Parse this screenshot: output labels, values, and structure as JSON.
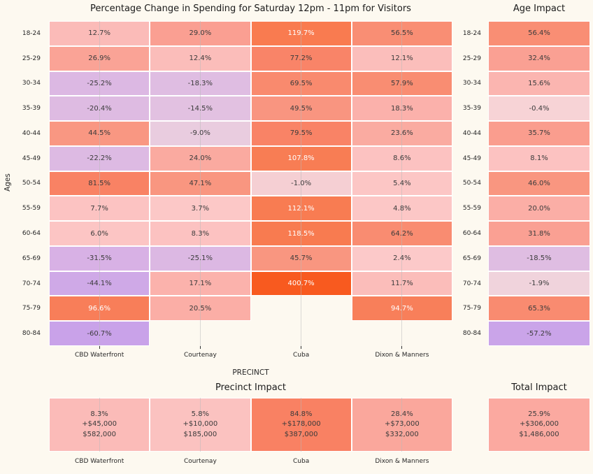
{
  "titles": {
    "main": "Percentage Change in Spending for Saturday 12pm - 11pm for Visitors",
    "age_impact": "Age Impact",
    "precinct_impact": "Precinct Impact",
    "total_impact": "Total Impact"
  },
  "colors": {
    "background": "#FDF9F0",
    "cell_border": "#FFFFFF",
    "text_dark": "#3B3B3B",
    "text_light": "#FFFFFF",
    "gridline": "#B9B9B9",
    "max_positive": "#F85A1F",
    "max_negative": "#C9A2E9"
  },
  "chart_data": {
    "type": "heatmap",
    "title": "Percentage Change in Spending for Saturday 12pm - 11pm for Visitors",
    "xlabel": "PRECINCT",
    "ylabel": "Ages",
    "x_categories": [
      "CBD Waterfront",
      "Courtenay",
      "Cuba",
      "Dixon & Manners"
    ],
    "y_categories": [
      "18-24",
      "25-29",
      "30-34",
      "35-39",
      "40-44",
      "45-49",
      "50-54",
      "55-59",
      "60-64",
      "65-69",
      "70-74",
      "75-79",
      "80-84"
    ],
    "value_unit": "percent",
    "main": {
      "rows": [
        [
          {
            "v": 12.7,
            "c": "#FBBBB8"
          },
          {
            "v": 29.0,
            "c": "#FA9F92"
          },
          {
            "v": 119.7,
            "c": "#F97B50"
          },
          {
            "v": 56.5,
            "c": "#F98E74"
          }
        ],
        [
          {
            "v": 26.9,
            "c": "#FAA396"
          },
          {
            "v": 12.4,
            "c": "#FBBDBA"
          },
          {
            "v": 77.2,
            "c": "#F98468"
          },
          {
            "v": 12.1,
            "c": "#FBBEBB"
          }
        ],
        [
          {
            "v": -25.2,
            "c": "#DCB8E3"
          },
          {
            "v": -18.3,
            "c": "#DFBDE2"
          },
          {
            "v": 69.5,
            "c": "#F98A6E"
          },
          {
            "v": 57.9,
            "c": "#F98D72"
          }
        ],
        [
          {
            "v": -20.4,
            "c": "#DEBBE2"
          },
          {
            "v": -14.5,
            "c": "#E2C1E1"
          },
          {
            "v": 49.5,
            "c": "#F99580"
          },
          {
            "v": 18.3,
            "c": "#FBB1AB"
          }
        ],
        [
          {
            "v": 44.5,
            "c": "#F99782"
          },
          {
            "v": -9.0,
            "c": "#E9CCDF"
          },
          {
            "v": 79.5,
            "c": "#F98366"
          },
          {
            "v": 23.6,
            "c": "#FAABA1"
          }
        ],
        [
          {
            "v": -22.2,
            "c": "#DDBAE3"
          },
          {
            "v": 24.0,
            "c": "#FAAAA0"
          },
          {
            "v": 107.8,
            "c": "#F87D54"
          },
          {
            "v": 8.6,
            "c": "#FCC2C1"
          }
        ],
        [
          {
            "v": 81.5,
            "c": "#F98264"
          },
          {
            "v": 47.1,
            "c": "#F99680"
          },
          {
            "v": -1.0,
            "c": "#F5CFD3"
          },
          {
            "v": 5.4,
            "c": "#FCC6C5"
          }
        ],
        [
          {
            "v": 7.7,
            "c": "#FCC3C2"
          },
          {
            "v": 3.7,
            "c": "#FCC8C7"
          },
          {
            "v": 112.1,
            "c": "#F87C52"
          },
          {
            "v": 4.8,
            "c": "#FCC7C6"
          }
        ],
        [
          {
            "v": 6.0,
            "c": "#FCC5C4"
          },
          {
            "v": 8.3,
            "c": "#FCC2C1"
          },
          {
            "v": 118.5,
            "c": "#F87B50"
          },
          {
            "v": 64.2,
            "c": "#F98C71"
          }
        ],
        [
          {
            "v": -31.5,
            "c": "#D8B1E5"
          },
          {
            "v": -25.1,
            "c": "#DCB8E3"
          },
          {
            "v": 45.7,
            "c": "#F99680"
          },
          {
            "v": 2.4,
            "c": "#FCC9C9"
          }
        ],
        [
          {
            "v": -44.1,
            "c": "#CFA9E7"
          },
          {
            "v": 17.1,
            "c": "#FBB2AC"
          },
          {
            "v": 400.7,
            "c": "#F85A1F"
          },
          {
            "v": 11.7,
            "c": "#FBBDBA"
          }
        ],
        [
          {
            "v": 96.6,
            "c": "#F87E59"
          },
          {
            "v": 20.5,
            "c": "#FBAEA6"
          },
          null,
          {
            "v": 94.7,
            "c": "#F87F5A"
          }
        ],
        [
          {
            "v": -60.7,
            "c": "#C9A2E9"
          },
          null,
          null,
          null
        ]
      ]
    },
    "age_impact": {
      "title": "Age Impact",
      "cells": [
        {
          "v": 56.4,
          "c": "#F98E74"
        },
        {
          "v": 32.4,
          "c": "#FAA093"
        },
        {
          "v": 15.6,
          "c": "#FBB5B0"
        },
        {
          "v": -0.4,
          "c": "#F7D3D6"
        },
        {
          "v": 35.7,
          "c": "#FA9D8E"
        },
        {
          "v": 8.1,
          "c": "#FCC2C1"
        },
        {
          "v": 46.0,
          "c": "#F99680"
        },
        {
          "v": 20.0,
          "c": "#FBAEA6"
        },
        {
          "v": 31.8,
          "c": "#FAA093"
        },
        {
          "v": -18.5,
          "c": "#DFBDE2"
        },
        {
          "v": -1.9,
          "c": "#F0D3DC"
        },
        {
          "v": 65.3,
          "c": "#F98B70"
        },
        {
          "v": -57.2,
          "c": "#CAA4E9"
        }
      ]
    },
    "precinct_impact": {
      "title": "Precinct Impact",
      "cells": [
        {
          "precinct": "CBD Waterfront",
          "pct": "8.3%",
          "change": "+$45,000",
          "total": "$582,000",
          "c": "#FBBBB8"
        },
        {
          "precinct": "Courtenay",
          "pct": "5.8%",
          "change": "+$10,000",
          "total": "$185,000",
          "c": "#FBC2C0"
        },
        {
          "precinct": "Cuba",
          "pct": "84.8%",
          "change": "+$178,000",
          "total": "$387,000",
          "c": "#F98163"
        },
        {
          "precinct": "Dixon & Manners",
          "pct": "28.4%",
          "change": "+$73,000",
          "total": "$332,000",
          "c": "#FAA79C"
        }
      ]
    },
    "total_impact": {
      "title": "Total Impact",
      "pct": "25.9%",
      "change": "+$306,000",
      "total": "$1,486,000",
      "c": "#FBA9A0"
    }
  }
}
